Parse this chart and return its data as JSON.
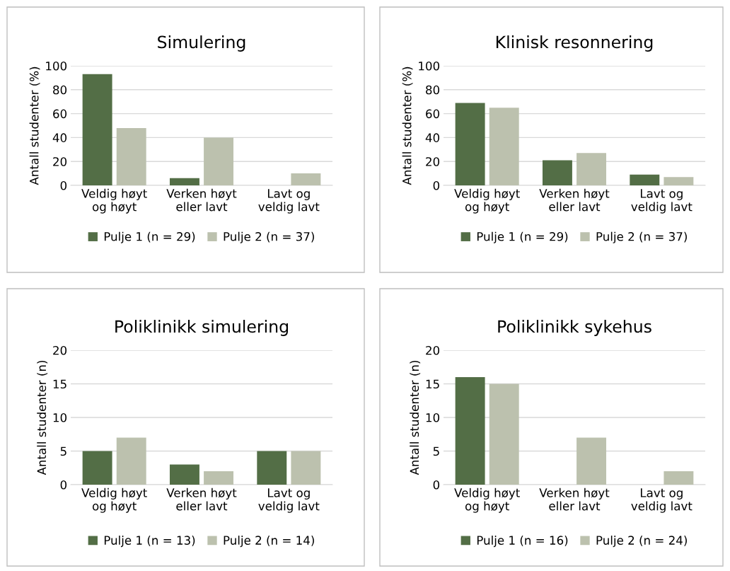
{
  "chart_data": [
    {
      "type": "bar",
      "title": "Simulering",
      "ylabel": "Antall studenter (%)",
      "categories": [
        "Veldig høyt\nog høyt",
        "Verken høyt\neller lavt",
        "Lavt og\nveldig lavt"
      ],
      "series": [
        {
          "name": "Pulje 1 (n = 29)",
          "color": "#536e46",
          "values": [
            93,
            6,
            0
          ]
        },
        {
          "name": "Pulje 2 (n = 37)",
          "color": "#bcc1ae",
          "values": [
            48,
            40,
            10
          ]
        }
      ],
      "ylim": [
        0,
        100
      ],
      "yticks": [
        0,
        20,
        40,
        60,
        80,
        100
      ],
      "grid": "y",
      "legend": "bottom"
    },
    {
      "type": "bar",
      "title": "Klinisk resonnering",
      "ylabel": "Antall studenter (%)",
      "categories": [
        "Veldig høyt\nog høyt",
        "Verken høyt\neller lavt",
        "Lavt og\nveldig lavt"
      ],
      "series": [
        {
          "name": "Pulje 1 (n = 29)",
          "color": "#536e46",
          "values": [
            69,
            21,
            9
          ]
        },
        {
          "name": "Pulje 2 (n = 37)",
          "color": "#bcc1ae",
          "values": [
            65,
            27,
            7
          ]
        }
      ],
      "ylim": [
        0,
        100
      ],
      "yticks": [
        0,
        20,
        40,
        60,
        80,
        100
      ],
      "grid": "y",
      "legend": "bottom"
    },
    {
      "type": "bar",
      "title": "Poliklinikk simulering",
      "ylabel": "Antall studenter (n)",
      "categories": [
        "Veldig høyt\nog høyt",
        "Verken høyt\neller lavt",
        "Lavt og\nveldig lavt"
      ],
      "series": [
        {
          "name": "Pulje 1 (n = 13)",
          "color": "#536e46",
          "values": [
            5,
            3,
            5
          ]
        },
        {
          "name": "Pulje 2 (n = 14)",
          "color": "#bcc1ae",
          "values": [
            7,
            2,
            5
          ]
        }
      ],
      "ylim": [
        0,
        20
      ],
      "yticks": [
        0,
        5,
        10,
        15,
        20
      ],
      "grid": "y",
      "legend": "bottom"
    },
    {
      "type": "bar",
      "title": "Poliklinikk sykehus",
      "ylabel": "Antall studenter (n)",
      "categories": [
        "Veldig høyt\nog høyt",
        "Verken høyt\neller lavt",
        "Lavt og\nveldig lavt"
      ],
      "series": [
        {
          "name": "Pulje 1 (n = 16)",
          "color": "#536e46",
          "values": [
            16,
            0,
            0
          ]
        },
        {
          "name": "Pulje 2 (n = 24)",
          "color": "#bcc1ae",
          "values": [
            15,
            7,
            2
          ]
        }
      ],
      "ylim": [
        0,
        20
      ],
      "yticks": [
        0,
        5,
        10,
        15,
        20
      ],
      "grid": "y",
      "legend": "bottom"
    }
  ]
}
